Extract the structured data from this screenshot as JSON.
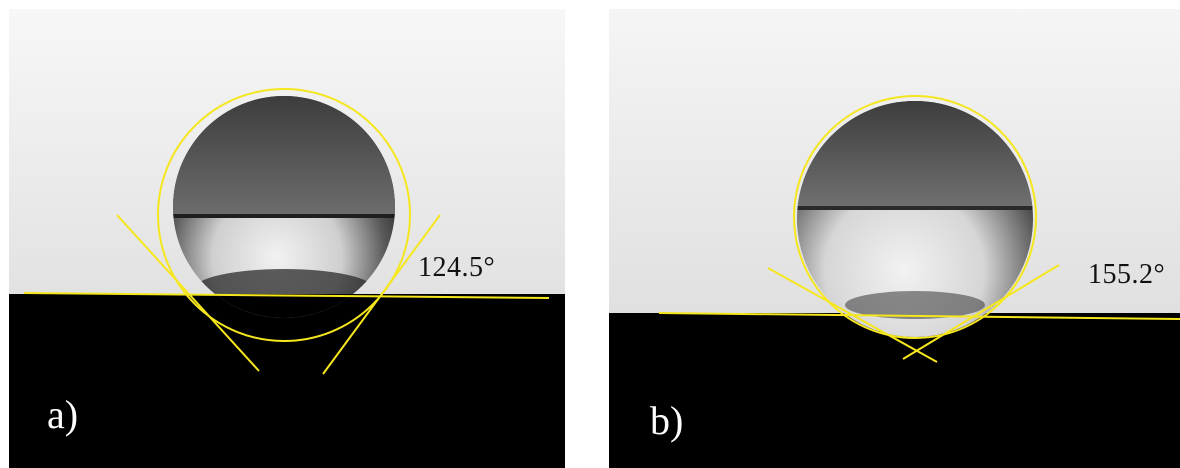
{
  "figure": {
    "accent_line_color": "#f5e61e",
    "substrate_color": "#000000",
    "background_color": "#efefef",
    "panels": [
      {
        "letter": "a)",
        "contact_angle_label": "124.5°",
        "contact_angle_deg": 124.5
      },
      {
        "letter": "b)",
        "contact_angle_label": "155.2°",
        "contact_angle_deg": 155.2
      }
    ]
  }
}
